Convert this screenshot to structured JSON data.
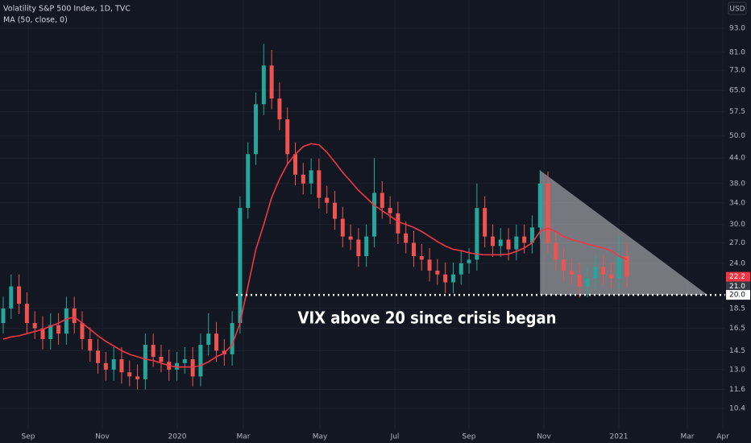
{
  "chart_data": {
    "type": "candlestick",
    "title": "Volatility S&P 500 Index, 1D, TVC",
    "currency": "USD",
    "log_scale": true,
    "grid": true,
    "up_color": "#26a69a",
    "down_color": "#ef5350",
    "candles": {
      "open": [
        17,
        18.5,
        21,
        19,
        17,
        16.5,
        15.5,
        16.8,
        16,
        18.5,
        17,
        15.5,
        14.5,
        13.5,
        13,
        13.8,
        12.8,
        12.5,
        12.3,
        15,
        14,
        13.6,
        13,
        13.5,
        13.8,
        12.5,
        15,
        16,
        14.5,
        14.2,
        17,
        33,
        45,
        60,
        75,
        62,
        55,
        45,
        40,
        38,
        41,
        35,
        34,
        31,
        28,
        27.5,
        25,
        28,
        36,
        33,
        32,
        28.5,
        27,
        25,
        24.5,
        23,
        22.5,
        21.5,
        22.5,
        24,
        24.5,
        33,
        28,
        26.5,
        27.5,
        26,
        28,
        27,
        29.5,
        38,
        27,
        24.5,
        23,
        22.5,
        21,
        22,
        23.5,
        22.5,
        22,
        25
      ],
      "high": [
        19.8,
        22.5,
        22.5,
        20.3,
        18.2,
        17.7,
        18.0,
        18.0,
        19.8,
        19.8,
        18.2,
        16.6,
        15.5,
        14.4,
        14.8,
        14.8,
        13.7,
        13.4,
        16.0,
        16.0,
        15.0,
        14.6,
        14.4,
        14.8,
        14.8,
        16.0,
        18.0,
        17.1,
        15.5,
        18.2,
        35.3,
        48.2,
        64.2,
        85.0,
        82.0,
        68.0,
        58.9,
        48.2,
        42.8,
        43.9,
        43.9,
        37.5,
        36.4,
        33.2,
        30.0,
        29.4,
        30.0,
        44.0,
        38.5,
        35.3,
        34.2,
        30.5,
        28.9,
        26.8,
        26.2,
        24.6,
        24.1,
        24.1,
        25.7,
        26.2,
        38.0,
        35.3,
        30.0,
        29.4,
        29.4,
        30.0,
        30.0,
        31.6,
        41.0,
        40.7,
        28.9,
        26.2,
        24.6,
        24.1,
        23.5,
        25.1,
        25.1,
        24.1,
        28.0,
        26.8
      ],
      "low": [
        16.0,
        17.4,
        17.9,
        16.0,
        15.5,
        14.6,
        14.6,
        15.0,
        15.0,
        16.0,
        14.6,
        13.6,
        12.7,
        12.2,
        12.2,
        12.0,
        11.8,
        11.6,
        11.6,
        13.2,
        12.8,
        12.2,
        12.2,
        12.7,
        11.8,
        11.8,
        14.1,
        13.6,
        13.3,
        13.3,
        16.0,
        31.0,
        42.3,
        56.4,
        58.3,
        51.7,
        42.3,
        37.6,
        35.7,
        35.7,
        32.9,
        32.0,
        29.1,
        26.3,
        25.9,
        23.5,
        23.5,
        26.3,
        31.0,
        30.1,
        26.8,
        25.4,
        23.5,
        23.0,
        21.6,
        21.2,
        20.2,
        20.2,
        21.2,
        22.6,
        23.0,
        26.3,
        24.9,
        24.9,
        24.4,
        24.4,
        25.4,
        25.4,
        27.7,
        25.4,
        23.0,
        21.6,
        21.2,
        19.7,
        19.7,
        20.7,
        21.2,
        20.7,
        20.7,
        20.9
      ],
      "close": [
        18.5,
        21,
        19,
        17,
        16.5,
        15.5,
        16.8,
        16,
        18.5,
        17,
        15.5,
        14.5,
        13.5,
        13,
        13.8,
        12.8,
        12.5,
        12.3,
        15,
        14,
        13.6,
        13,
        13.5,
        13.8,
        12.5,
        15,
        16,
        14.5,
        14.2,
        17,
        33,
        45,
        60,
        75,
        62,
        55,
        45,
        40,
        38,
        41,
        35,
        34,
        31,
        28,
        27.5,
        25,
        28,
        36,
        33,
        32,
        28.5,
        27,
        25,
        24.5,
        23,
        22.5,
        21.5,
        22.5,
        24,
        24.5,
        33,
        28,
        26.5,
        27.5,
        26,
        28,
        27,
        29.5,
        38,
        27,
        24.5,
        23,
        22.5,
        21,
        22,
        23.5,
        22.5,
        22,
        25,
        22.2
      ]
    },
    "series": [
      {
        "name": "MA (50, close, 0)",
        "color": "#f23645",
        "values": [
          15.5,
          15.7,
          15.8,
          16,
          16.2,
          16.4,
          16.7,
          17,
          17.4,
          17.6,
          17,
          16.4,
          15.8,
          15.3,
          14.9,
          14.5,
          14.2,
          14,
          13.8,
          13.7,
          13.5,
          13.3,
          13.2,
          13.2,
          13.2,
          13.3,
          13.6,
          14,
          14.3,
          15,
          17,
          21,
          26,
          30,
          35,
          39,
          42.5,
          45,
          47,
          47.8,
          47.5,
          45.5,
          43,
          40.5,
          38.5,
          36.5,
          35,
          33.5,
          32.5,
          31.5,
          30.5,
          30,
          29.5,
          28.8,
          28,
          27.2,
          26.5,
          26,
          25.8,
          25.5,
          25.3,
          25.2,
          25.2,
          25.2,
          25.3,
          25.7,
          26.2,
          27,
          28.8,
          29.4,
          28.8,
          28,
          27.5,
          27.2,
          26.8,
          26.5,
          26.2,
          25.8,
          25,
          24.5
        ]
      }
    ],
    "ylim": [
      9.26,
      109.4
    ],
    "yticks": [
      {
        "value": 10.4,
        "label": "10.4"
      },
      {
        "value": 11.6,
        "label": "11.6"
      },
      {
        "value": 13,
        "label": "13.0"
      },
      {
        "value": 14.5,
        "label": "14.5"
      },
      {
        "value": 16.5,
        "label": "16.5"
      },
      {
        "value": 18.5,
        "label": "18.5"
      },
      {
        "value": 24,
        "label": "24.0"
      },
      {
        "value": 27,
        "label": "27.0"
      },
      {
        "value": 30,
        "label": "30.0"
      },
      {
        "value": 34,
        "label": "34.0"
      },
      {
        "value": 38,
        "label": "38.0"
      },
      {
        "value": 44,
        "label": "44.0"
      },
      {
        "value": 50,
        "label": "50.0"
      },
      {
        "value": 57.5,
        "label": "57.5"
      },
      {
        "value": 65,
        "label": "65.0"
      },
      {
        "value": 73,
        "label": "73.0"
      },
      {
        "value": 81,
        "label": "81.0"
      },
      {
        "value": 93,
        "label": "93.0"
      }
    ],
    "x_labels": [
      "Sep",
      "Nov",
      "2020",
      "Mar",
      "May",
      "Jul",
      "Sep",
      "Nov",
      "2021",
      "Mar",
      "Apr"
    ],
    "annotation": {
      "text": "VIX above 20 since crisis began",
      "level": {
        "value": 20,
        "label": "20.0"
      }
    },
    "price_labels": [
      {
        "value": 22.2,
        "label": "22.2",
        "color": "#f23645"
      },
      {
        "value": 21,
        "label": "21.0",
        "color": "#363a45"
      }
    ]
  }
}
